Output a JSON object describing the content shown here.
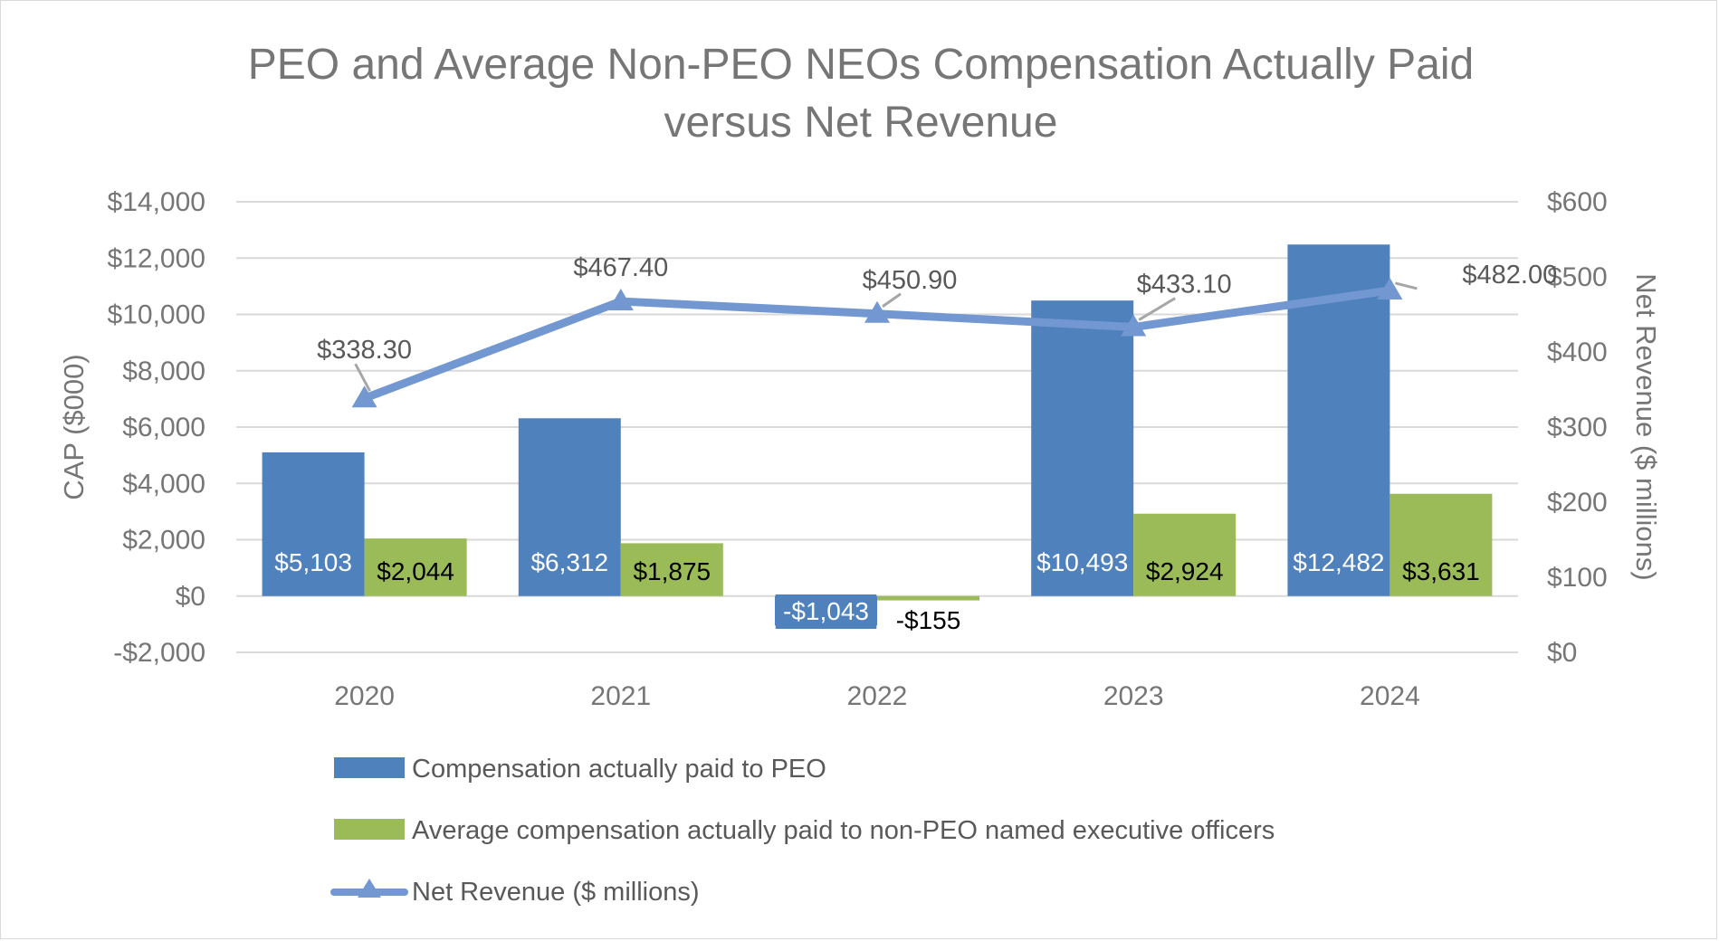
{
  "chart_data": {
    "type": "bar",
    "title_lines": [
      "PEO and Average Non-PEO NEOs Compensation Actually Paid",
      "versus Net Revenue"
    ],
    "categories": [
      "2020",
      "2021",
      "2022",
      "2023",
      "2024"
    ],
    "y_left": {
      "label": "CAP ($000)",
      "range": [
        -2000,
        14000
      ],
      "ticks": [
        -2000,
        0,
        2000,
        4000,
        6000,
        8000,
        10000,
        12000,
        14000
      ],
      "tick_labels": [
        "-$2,000",
        "$0",
        "$2,000",
        "$4,000",
        "$6,000",
        "$8,000",
        "$10,000",
        "$12,000",
        "$14,000"
      ]
    },
    "y_right": {
      "label": "Net Revenue ($ millions)",
      "range": [
        0,
        600
      ],
      "ticks": [
        0,
        100,
        200,
        300,
        400,
        500,
        600
      ],
      "tick_labels": [
        "$0",
        "$100",
        "$200",
        "$300",
        "$400",
        "$500",
        "$600"
      ]
    },
    "series": [
      {
        "name": "Compensation actually paid to PEO",
        "type": "bar",
        "axis": "left",
        "color": "#4f81bd",
        "values": [
          5103,
          6312,
          -1043,
          10493,
          12482
        ],
        "labels": [
          "$5,103",
          "$6,312",
          "-$1,043",
          "$10,493",
          "$12,482"
        ]
      },
      {
        "name": "Average compensation actually paid to non-PEO named executive officers",
        "type": "bar",
        "axis": "left",
        "color": "#9bbb59",
        "values": [
          2044,
          1875,
          -155,
          2924,
          3631
        ],
        "labels": [
          "$2,044",
          "$1,875",
          "-$155",
          "$2,924",
          "$3,631"
        ]
      },
      {
        "name": "Net Revenue ($ millions)",
        "type": "line",
        "axis": "right",
        "color": "#7397d1",
        "values": [
          338.3,
          467.4,
          450.9,
          433.1,
          482.0
        ],
        "labels": [
          "$338.30",
          "$467.40",
          "$450.90",
          "$433.10",
          "$482.00"
        ]
      }
    ],
    "grid": true,
    "legend_position": "bottom"
  },
  "colors": {
    "peo": "#4f81bd",
    "neo": "#9bbb59",
    "line": "#7397d1",
    "grid": "#d9d9d9",
    "text": "#767676"
  }
}
